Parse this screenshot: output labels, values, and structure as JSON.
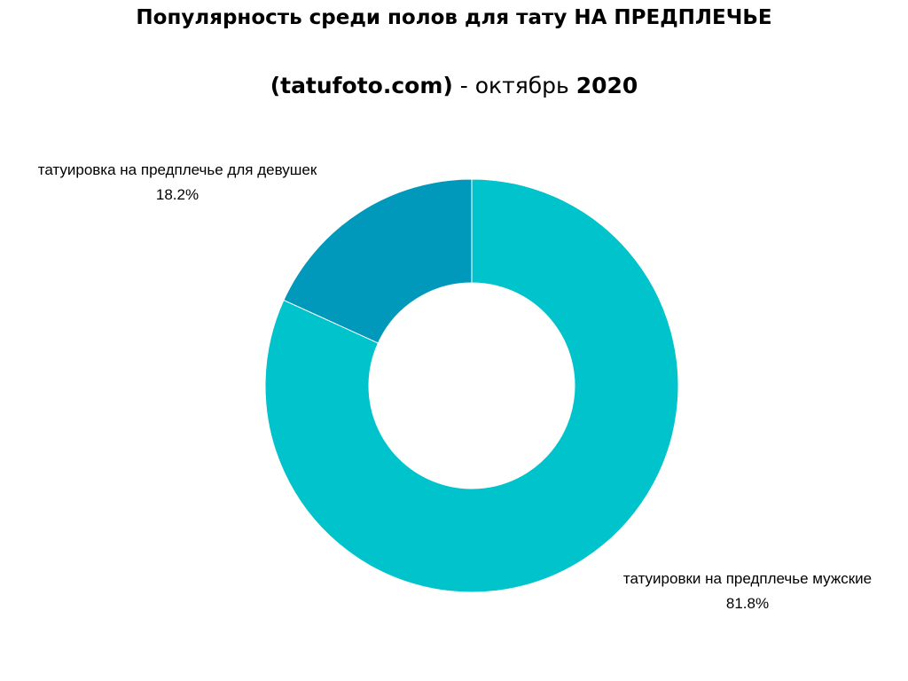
{
  "header": {
    "title": "Популярность среди полов для тату НА ПРЕДПЛЕЧЬЕ",
    "subtitle_part1": "(tatufoto.com)",
    "subtitle_part2": " - октябрь ",
    "subtitle_part3": "2020"
  },
  "chart_data": {
    "type": "pie",
    "donut": true,
    "start": "12 o'clock, clockwise",
    "series": [
      {
        "name": "татуировки на предплечье мужские",
        "value": 81.8,
        "label": "81.8%",
        "color": "#00c3cc"
      },
      {
        "name": "татуировка на предплечье для девушек",
        "value": 18.2,
        "label": "18.2%",
        "color": "#0099bb"
      }
    ]
  }
}
